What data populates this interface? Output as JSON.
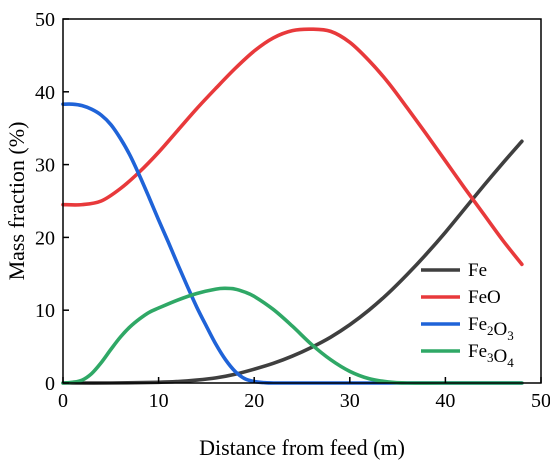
{
  "chart_data": {
    "type": "line",
    "title": "",
    "xlabel": "Distance from feed (m)",
    "ylabel": "Mass fraction (%)",
    "xlim": [
      0,
      50
    ],
    "ylim": [
      0,
      50
    ],
    "xticks": [
      0,
      10,
      20,
      30,
      40,
      50
    ],
    "yticks": [
      0,
      10,
      20,
      30,
      40,
      50
    ],
    "grid": false,
    "legend_position": "bottom-right",
    "series": [
      {
        "name": "Fe",
        "label_parts": [
          {
            "t": "Fe"
          }
        ],
        "color": "#3f3f3f",
        "x": [
          0,
          5,
          10,
          12,
          14,
          16,
          18,
          20,
          22,
          24,
          26,
          28,
          30,
          32,
          34,
          36,
          38,
          40,
          42,
          44,
          46,
          48
        ],
        "y": [
          0,
          0,
          0.1,
          0.2,
          0.4,
          0.7,
          1.2,
          1.9,
          2.7,
          3.7,
          4.9,
          6.3,
          8.0,
          10.0,
          12.3,
          14.9,
          17.7,
          20.7,
          23.9,
          27.1,
          30.2,
          33.2
        ]
      },
      {
        "name": "FeO",
        "label_parts": [
          {
            "t": "FeO"
          }
        ],
        "color": "#e8393b",
        "x": [
          0,
          2,
          4,
          6,
          8,
          10,
          12,
          14,
          16,
          18,
          20,
          22,
          24,
          26,
          28,
          30,
          32,
          34,
          36,
          38,
          40,
          42,
          44,
          46,
          48
        ],
        "y": [
          24.5,
          24.5,
          25.0,
          26.7,
          29.0,
          31.7,
          34.7,
          37.7,
          40.5,
          43.2,
          45.6,
          47.4,
          48.4,
          48.6,
          48.3,
          46.8,
          44.3,
          41.3,
          37.8,
          34.2,
          30.5,
          26.8,
          23.2,
          19.6,
          16.3
        ]
      },
      {
        "name": "Fe2O3",
        "label_parts": [
          {
            "t": "Fe"
          },
          {
            "t": "2",
            "sub": true
          },
          {
            "t": "O"
          },
          {
            "t": "3",
            "sub": true
          }
        ],
        "color": "#1f63d8",
        "x": [
          0,
          1,
          2,
          3,
          4,
          5,
          6,
          7,
          8,
          9,
          10,
          11,
          12,
          13,
          14,
          15,
          16,
          17,
          18,
          19,
          20,
          21,
          22,
          25,
          30,
          40,
          48
        ],
        "y": [
          38.3,
          38.3,
          38.1,
          37.6,
          36.8,
          35.5,
          33.6,
          31.3,
          28.5,
          25.5,
          22.4,
          19.4,
          16.3,
          13.3,
          10.4,
          7.8,
          5.3,
          3.2,
          1.6,
          0.6,
          0.2,
          0.05,
          0,
          0,
          0,
          0,
          0
        ]
      },
      {
        "name": "Fe3O4",
        "label_parts": [
          {
            "t": "Fe"
          },
          {
            "t": "3",
            "sub": true
          },
          {
            "t": "O"
          },
          {
            "t": "4",
            "sub": true
          }
        ],
        "color": "#2fa866",
        "x": [
          0,
          1,
          2,
          3,
          4,
          5,
          6,
          7,
          8,
          9,
          10,
          12,
          14,
          16,
          17,
          18,
          19,
          20,
          22,
          24,
          26,
          28,
          30,
          32,
          34,
          36,
          40,
          48
        ],
        "y": [
          0,
          0.1,
          0.4,
          1.3,
          2.8,
          4.6,
          6.3,
          7.7,
          8.8,
          9.7,
          10.3,
          11.4,
          12.3,
          12.9,
          13.0,
          12.9,
          12.5,
          11.9,
          10.1,
          7.8,
          5.3,
          3.2,
          1.6,
          0.6,
          0.15,
          0,
          0,
          0
        ]
      }
    ]
  }
}
